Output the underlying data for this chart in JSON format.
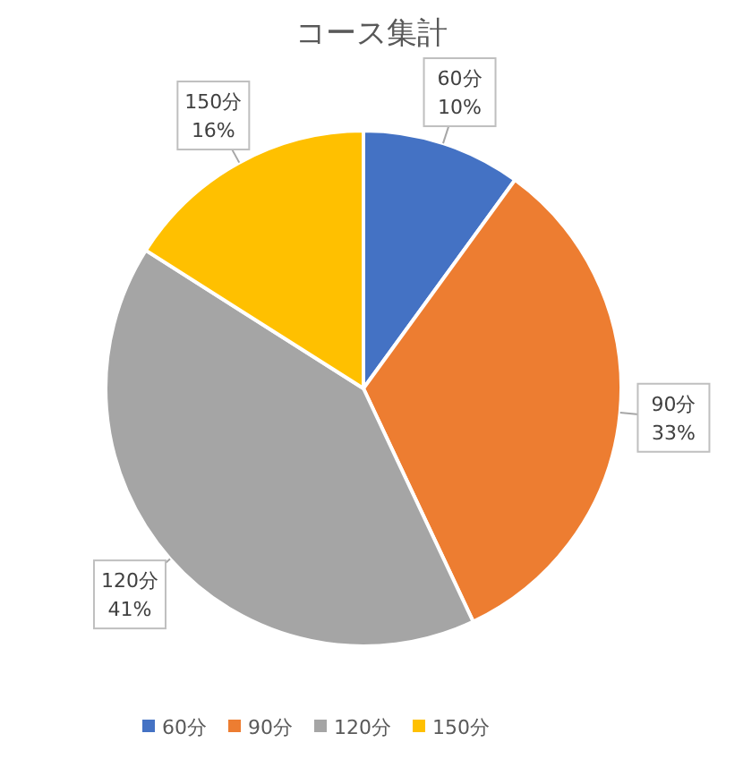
{
  "chart_data": {
    "type": "pie",
    "title": "コース集計",
    "categories": [
      "60分",
      "90分",
      "120分",
      "150分"
    ],
    "values": [
      10,
      33,
      41,
      16
    ],
    "colors": [
      "#4472c4",
      "#ed7d31",
      "#a5a5a5",
      "#ffc000"
    ],
    "value_labels": [
      "10%",
      "33%",
      "41%",
      "16%"
    ],
    "legend": "bottom"
  }
}
